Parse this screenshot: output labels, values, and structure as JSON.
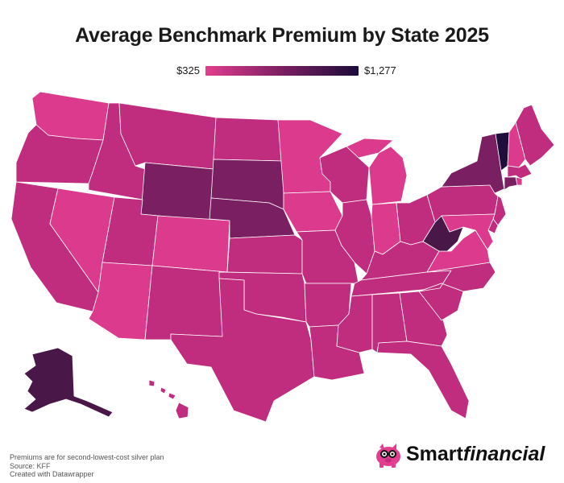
{
  "title": "Average Benchmark Premium by State 2025",
  "legend": {
    "min_label": "$325",
    "max_label": "$1,277",
    "min": 325,
    "max": 1277,
    "color_low": "#e23d8e",
    "color_mid": "#7b1f62",
    "color_high": "#1c0c3a"
  },
  "footer": {
    "note": "Premiums are for second-lowest-cost silver plan",
    "source": "Source: KFF",
    "credit": "Created with Datawrapper"
  },
  "brand": {
    "name_bold": "Smart",
    "name_italic": "financial",
    "logo_icon": "piggy-bank-with-glasses-icon"
  },
  "colors": {
    "band1": "#dc3a8c",
    "band2": "#c12d7e",
    "band3": "#7a1f62",
    "band4": "#4a1749",
    "band5": "#1f0d3c"
  },
  "chart_data": {
    "type": "choropleth",
    "title": "Average Benchmark Premium by State 2025",
    "scale": {
      "min": 325,
      "max": 1277,
      "min_label": "$325",
      "max_label": "$1,277"
    },
    "states": [
      {
        "id": "WA",
        "band": "band1"
      },
      {
        "id": "OR",
        "band": "band2"
      },
      {
        "id": "CA",
        "band": "band2"
      },
      {
        "id": "ID",
        "band": "band2"
      },
      {
        "id": "NV",
        "band": "band1"
      },
      {
        "id": "MT",
        "band": "band2"
      },
      {
        "id": "WY",
        "band": "band3"
      },
      {
        "id": "UT",
        "band": "band2"
      },
      {
        "id": "AZ",
        "band": "band1"
      },
      {
        "id": "CO",
        "band": "band1"
      },
      {
        "id": "NM",
        "band": "band2"
      },
      {
        "id": "ND",
        "band": "band2"
      },
      {
        "id": "SD",
        "band": "band3"
      },
      {
        "id": "NE",
        "band": "band3"
      },
      {
        "id": "KS",
        "band": "band2"
      },
      {
        "id": "OK",
        "band": "band2"
      },
      {
        "id": "TX",
        "band": "band2"
      },
      {
        "id": "MN",
        "band": "band1"
      },
      {
        "id": "IA",
        "band": "band1"
      },
      {
        "id": "MO",
        "band": "band2"
      },
      {
        "id": "AR",
        "band": "band2"
      },
      {
        "id": "LA",
        "band": "band2"
      },
      {
        "id": "WI",
        "band": "band2"
      },
      {
        "id": "IL",
        "band": "band2"
      },
      {
        "id": "MI",
        "band": "band1"
      },
      {
        "id": "IN",
        "band": "band1"
      },
      {
        "id": "OH",
        "band": "band2"
      },
      {
        "id": "KY",
        "band": "band2"
      },
      {
        "id": "TN",
        "band": "band2"
      },
      {
        "id": "MS",
        "band": "band2"
      },
      {
        "id": "AL",
        "band": "band2"
      },
      {
        "id": "GA",
        "band": "band2"
      },
      {
        "id": "FL",
        "band": "band2"
      },
      {
        "id": "SC",
        "band": "band2"
      },
      {
        "id": "NC",
        "band": "band2"
      },
      {
        "id": "VA",
        "band": "band1"
      },
      {
        "id": "WV",
        "band": "band4"
      },
      {
        "id": "PA",
        "band": "band2"
      },
      {
        "id": "NY",
        "band": "band3"
      },
      {
        "id": "VT",
        "band": "band5"
      },
      {
        "id": "NH",
        "band": "band1"
      },
      {
        "id": "ME",
        "band": "band2"
      },
      {
        "id": "MA",
        "band": "band2"
      },
      {
        "id": "RI",
        "band": "band1"
      },
      {
        "id": "CT",
        "band": "band3"
      },
      {
        "id": "NJ",
        "band": "band2"
      },
      {
        "id": "DE",
        "band": "band2"
      },
      {
        "id": "MD",
        "band": "band1"
      },
      {
        "id": "AK",
        "band": "band4"
      },
      {
        "id": "HI",
        "band": "band2"
      }
    ]
  }
}
